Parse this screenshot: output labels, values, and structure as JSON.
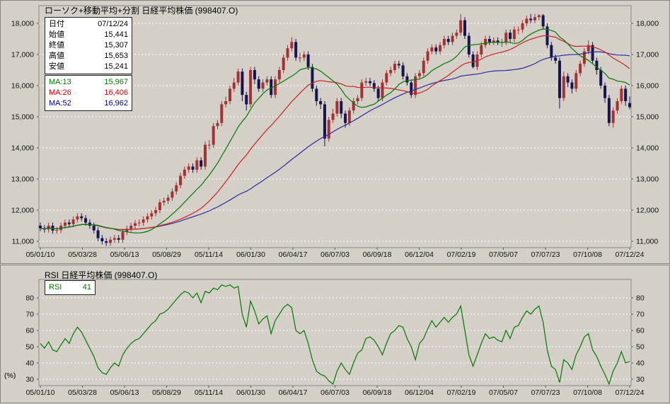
{
  "chart_data": [
    {
      "type": "candlestick",
      "title": "ローソク+移動平均+分割 日経平均株価 (998407.O)",
      "symbol": "998407.O",
      "x_labels": [
        "05/01/10",
        "05/03/28",
        "05/06/13",
        "05/08/29",
        "05/11/14",
        "06/01/30",
        "06/04/17",
        "06/07/03",
        "06/09/18",
        "06/12/04",
        "07/02/19",
        "07/05/07",
        "07/07/23",
        "07/10/08",
        "07/12/24"
      ],
      "y_ticks": [
        {
          "v": 18000,
          "label": "18,000"
        },
        {
          "v": 17000,
          "label": "17,000"
        },
        {
          "v": 16000,
          "label": "16,000"
        },
        {
          "v": 15000,
          "label": "15,000"
        },
        {
          "v": 14000,
          "label": "14,000"
        },
        {
          "v": 13000,
          "label": "13,000"
        },
        {
          "v": 12000,
          "label": "12,000"
        },
        {
          "v": 11000,
          "label": "11,000"
        }
      ],
      "ylim": [
        10750,
        18570
      ],
      "info_box": {
        "rows": [
          {
            "label": "日付",
            "value": "07/12/24"
          },
          {
            "label": "始値",
            "value": "15,441"
          },
          {
            "label": "終値",
            "value": "15,307"
          },
          {
            "label": "高値",
            "value": "15,653"
          },
          {
            "label": "安値",
            "value": "15,241"
          }
        ]
      },
      "ma_box": {
        "rows": [
          {
            "label": "MA:13",
            "value": "15,967",
            "color": "#007a00"
          },
          {
            "label": "MA:26",
            "value": "16,406",
            "color": "#cc0000"
          },
          {
            "label": "MA:52",
            "value": "16,962",
            "color": "#00008b"
          }
        ]
      },
      "ma_periods": {
        "ma13": 13,
        "ma26": 26,
        "ma52": 52
      },
      "colors": {
        "up": "#a43232",
        "down": "#15154f",
        "ma13": "#007a00",
        "ma26": "#cc2222",
        "ma52": "#2b2b9e",
        "grid": "#ffffff",
        "frame": "#87877f",
        "axis": "#55554f"
      },
      "candles": [
        [
          11500,
          11600,
          11320,
          11420
        ],
        [
          11420,
          11520,
          11280,
          11380
        ],
        [
          11380,
          11600,
          11280,
          11500
        ],
        [
          11500,
          11600,
          11240,
          11340
        ],
        [
          11340,
          11460,
          11240,
          11360
        ],
        [
          11360,
          11600,
          11260,
          11500
        ],
        [
          11500,
          11700,
          11400,
          11600
        ],
        [
          11600,
          11700,
          11450,
          11550
        ],
        [
          11550,
          11800,
          11450,
          11700
        ],
        [
          11700,
          11900,
          11600,
          11800
        ],
        [
          11800,
          11900,
          11640,
          11740
        ],
        [
          11740,
          11840,
          11500,
          11600
        ],
        [
          11600,
          11700,
          11400,
          11500
        ],
        [
          11500,
          11600,
          11250,
          11350
        ],
        [
          11350,
          11450,
          11000,
          11100
        ],
        [
          11100,
          11200,
          10900,
          11000
        ],
        [
          11000,
          11100,
          10850,
          10950
        ],
        [
          10950,
          11150,
          10850,
          11050
        ],
        [
          11050,
          11200,
          10950,
          11100
        ],
        [
          11100,
          11200,
          10950,
          11050
        ],
        [
          11050,
          11400,
          10950,
          11300
        ],
        [
          11300,
          11500,
          11200,
          11400
        ],
        [
          11400,
          11600,
          11300,
          11500
        ],
        [
          11500,
          11680,
          11400,
          11580
        ],
        [
          11580,
          11700,
          11480,
          11600
        ],
        [
          11600,
          11800,
          11500,
          11700
        ],
        [
          11700,
          11900,
          11600,
          11800
        ],
        [
          11800,
          12000,
          11700,
          11900
        ],
        [
          11900,
          12100,
          11800,
          12000
        ],
        [
          12000,
          12350,
          11900,
          12250
        ],
        [
          12250,
          12400,
          12150,
          12300
        ],
        [
          12300,
          12500,
          12200,
          12400
        ],
        [
          12400,
          12700,
          12300,
          12600
        ],
        [
          12600,
          12900,
          12500,
          12800
        ],
        [
          12800,
          13200,
          12700,
          13100
        ],
        [
          13100,
          13400,
          13000,
          13300
        ],
        [
          13300,
          13500,
          13200,
          13400
        ],
        [
          13400,
          13500,
          13200,
          13300
        ],
        [
          13300,
          13700,
          13200,
          13600
        ],
        [
          13600,
          13700,
          13300,
          13400
        ],
        [
          13400,
          14200,
          13300,
          14100
        ],
        [
          14100,
          14250,
          13950,
          14100
        ],
        [
          14100,
          14800,
          14000,
          14700
        ],
        [
          14700,
          14900,
          14600,
          14800
        ],
        [
          14800,
          15500,
          14700,
          15400
        ],
        [
          15400,
          15650,
          15300,
          15500
        ],
        [
          15500,
          16000,
          15400,
          15900
        ],
        [
          15900,
          16250,
          15800,
          16100
        ],
        [
          16100,
          16550,
          16000,
          16450
        ],
        [
          16450,
          16550,
          15500,
          15700
        ],
        [
          15700,
          15800,
          15200,
          15400
        ],
        [
          15400,
          16600,
          15300,
          16500
        ],
        [
          16500,
          16600,
          16050,
          16200
        ],
        [
          16200,
          16300,
          15800,
          15900
        ],
        [
          15900,
          16200,
          15800,
          16100
        ],
        [
          16100,
          16300,
          16000,
          16200
        ],
        [
          16200,
          16300,
          15600,
          15700
        ],
        [
          15700,
          16300,
          15600,
          16200
        ],
        [
          16200,
          16600,
          16100,
          16500
        ],
        [
          16500,
          17000,
          16400,
          16900
        ],
        [
          16900,
          17300,
          16800,
          17200
        ],
        [
          17200,
          17560,
          17100,
          17400
        ],
        [
          17400,
          17500,
          16800,
          16900
        ],
        [
          16900,
          17050,
          16750,
          16900
        ],
        [
          16900,
          17100,
          16800,
          17000
        ],
        [
          17000,
          17100,
          16500,
          16600
        ],
        [
          16600,
          16700,
          15800,
          15900
        ],
        [
          15900,
          16000,
          15350,
          15500
        ],
        [
          15500,
          15600,
          15250,
          15400
        ],
        [
          15400,
          15500,
          14050,
          14300
        ],
        [
          14300,
          15000,
          14200,
          14900
        ],
        [
          14900,
          15250,
          14800,
          15100
        ],
        [
          15100,
          15600,
          15000,
          15500
        ],
        [
          15500,
          15600,
          14950,
          15100
        ],
        [
          15100,
          15200,
          14650,
          14800
        ],
        [
          14800,
          15300,
          14700,
          15200
        ],
        [
          15200,
          15600,
          15100,
          15500
        ],
        [
          15500,
          15700,
          15400,
          15600
        ],
        [
          15600,
          16200,
          15500,
          16100
        ],
        [
          16100,
          16250,
          16000,
          16140
        ],
        [
          16140,
          16250,
          15980,
          16080
        ],
        [
          16080,
          16180,
          15800,
          15900
        ],
        [
          15900,
          16000,
          15500,
          15600
        ],
        [
          15600,
          16200,
          15500,
          16100
        ],
        [
          16100,
          16500,
          16000,
          16400
        ],
        [
          16400,
          16600,
          16300,
          16500
        ],
        [
          16500,
          16800,
          16400,
          16700
        ],
        [
          16700,
          16800,
          16550,
          16650
        ],
        [
          16650,
          16750,
          16200,
          16300
        ],
        [
          16300,
          16400,
          16000,
          16100
        ],
        [
          16100,
          16200,
          15600,
          15700
        ],
        [
          15700,
          16400,
          15600,
          16300
        ],
        [
          16300,
          16500,
          16200,
          16400
        ],
        [
          16400,
          16900,
          16300,
          16800
        ],
        [
          16800,
          17200,
          16700,
          17100
        ],
        [
          17100,
          17325,
          17000,
          17225
        ],
        [
          17225,
          17325,
          17000,
          17100
        ],
        [
          17100,
          17400,
          17000,
          17300
        ],
        [
          17300,
          17600,
          17200,
          17500
        ],
        [
          17500,
          17600,
          17300,
          17400
        ],
        [
          17400,
          17700,
          17300,
          17600
        ],
        [
          17600,
          17800,
          17500,
          17700
        ],
        [
          17700,
          18300,
          17600,
          18100
        ],
        [
          18100,
          18200,
          17500,
          17600
        ],
        [
          17600,
          17700,
          16900,
          17000
        ],
        [
          17000,
          17100,
          16550,
          16600
        ],
        [
          16600,
          17100,
          16500,
          17000
        ],
        [
          17000,
          17400,
          16900,
          17300
        ],
        [
          17300,
          17600,
          17200,
          17500
        ],
        [
          17500,
          17600,
          17300,
          17400
        ],
        [
          17400,
          17550,
          17300,
          17450
        ],
        [
          17450,
          17550,
          17300,
          17400
        ],
        [
          17400,
          17500,
          17250,
          17400
        ],
        [
          17400,
          17800,
          17300,
          17700
        ],
        [
          17700,
          17800,
          17400,
          17500
        ],
        [
          17500,
          17900,
          17400,
          17800
        ],
        [
          17800,
          17900,
          17650,
          17800
        ],
        [
          17800,
          18100,
          17700,
          18000
        ],
        [
          18000,
          18250,
          17900,
          18150
        ],
        [
          18150,
          18300,
          18000,
          18100
        ],
        [
          18100,
          18300,
          18000,
          18200
        ],
        [
          18200,
          18295,
          18100,
          18260
        ],
        [
          18260,
          18300,
          17800,
          17900
        ],
        [
          17900,
          18000,
          17200,
          17300
        ],
        [
          17300,
          17400,
          16800,
          16900
        ],
        [
          16900,
          17000,
          16700,
          16800
        ],
        [
          16800,
          16900,
          15260,
          15600
        ],
        [
          15600,
          16450,
          15500,
          16300
        ],
        [
          16300,
          16400,
          15950,
          16100
        ],
        [
          16100,
          16200,
          15750,
          15900
        ],
        [
          15900,
          16500,
          15800,
          16400
        ],
        [
          16400,
          16800,
          16300,
          16700
        ],
        [
          16700,
          17200,
          16600,
          17100
        ],
        [
          17100,
          17450,
          17000,
          17300
        ],
        [
          17300,
          17400,
          16700,
          16800
        ],
        [
          16800,
          16900,
          16350,
          16500
        ],
        [
          16500,
          16600,
          15900,
          16000
        ],
        [
          16000,
          16100,
          15450,
          15600
        ],
        [
          15600,
          15700,
          14700,
          14800
        ],
        [
          14800,
          15300,
          14650,
          15200
        ],
        [
          15200,
          15600,
          15100,
          15500
        ],
        [
          15500,
          16000,
          15400,
          15900
        ],
        [
          15900,
          16000,
          15350,
          15500
        ],
        [
          15441,
          15653,
          15241,
          15307
        ]
      ]
    },
    {
      "type": "line",
      "title": "RSI 日経平均株価 (998407.O)",
      "legend": {
        "label": "RSI",
        "value": "41"
      },
      "unit": "(%)",
      "color": "#007a00",
      "y_ticks": [
        {
          "v": 80,
          "label": "80"
        },
        {
          "v": 70,
          "label": "70"
        },
        {
          "v": 60,
          "label": "60"
        },
        {
          "v": 50,
          "label": "50"
        },
        {
          "v": 40,
          "label": "40"
        },
        {
          "v": 30,
          "label": "30"
        }
      ],
      "ylim": [
        25,
        91
      ],
      "x_labels": [
        "05/01/10",
        "05/03/28",
        "05/06/13",
        "05/08/29",
        "05/11/14",
        "06/01/30",
        "06/04/17",
        "06/07/03",
        "06/09/18",
        "06/12/04",
        "07/02/19",
        "07/05/07",
        "07/07/23",
        "07/10/08",
        "07/12/24"
      ],
      "values": [
        52,
        49,
        53,
        48,
        47,
        51,
        55,
        52,
        58,
        62,
        59,
        54,
        49,
        44,
        37,
        34,
        33,
        37,
        40,
        38,
        45,
        49,
        52,
        54,
        55,
        58,
        61,
        64,
        66,
        70,
        71,
        73,
        76,
        79,
        82,
        84,
        83,
        80,
        83,
        77,
        84,
        83,
        86,
        85,
        88,
        87,
        88,
        86,
        87,
        70,
        62,
        78,
        72,
        64,
        67,
        69,
        58,
        66,
        70,
        74,
        76,
        74,
        60,
        58,
        60,
        52,
        42,
        35,
        33,
        32,
        29,
        27,
        35,
        40,
        36,
        33,
        40,
        46,
        48,
        55,
        56,
        54,
        50,
        45,
        52,
        58,
        60,
        63,
        62,
        55,
        50,
        42,
        52,
        55,
        61,
        66,
        62,
        65,
        68,
        65,
        68,
        70,
        75,
        60,
        45,
        38,
        45,
        52,
        58,
        55,
        56,
        54,
        53,
        60,
        55,
        62,
        63,
        68,
        72,
        70,
        73,
        75,
        65,
        48,
        38,
        36,
        28,
        42,
        40,
        36,
        45,
        50,
        56,
        58,
        48,
        44,
        38,
        33,
        27,
        35,
        40,
        47,
        40,
        41
      ]
    }
  ]
}
